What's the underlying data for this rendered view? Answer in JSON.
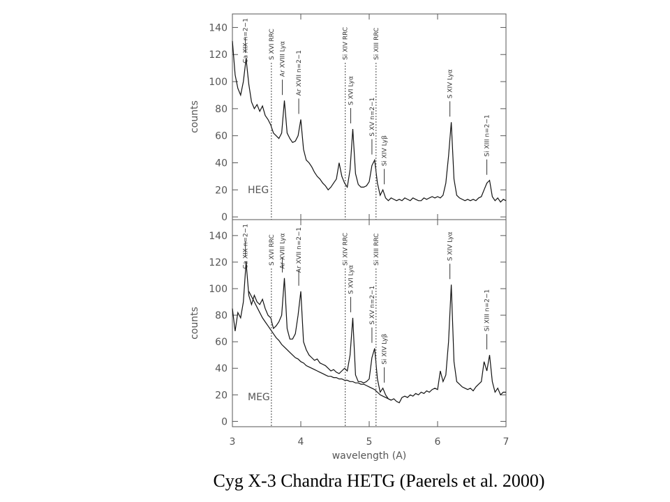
{
  "caption": "Cyg X-3 Chandra HETG (Paerels et al. 2000)",
  "chart_data": [
    {
      "type": "line",
      "panel_label": "HEG",
      "ylabel": "counts",
      "xlim": [
        3,
        7
      ],
      "ylim": [
        -2,
        150
      ],
      "xticks": [
        3,
        4,
        5,
        6,
        7
      ],
      "yticks": [
        0,
        20,
        40,
        60,
        80,
        100,
        120,
        140
      ],
      "x": [
        3.0,
        3.04,
        3.08,
        3.12,
        3.16,
        3.2,
        3.24,
        3.28,
        3.32,
        3.36,
        3.4,
        3.44,
        3.48,
        3.52,
        3.56,
        3.6,
        3.64,
        3.68,
        3.72,
        3.76,
        3.8,
        3.84,
        3.88,
        3.92,
        3.96,
        4.0,
        4.04,
        4.08,
        4.12,
        4.16,
        4.2,
        4.24,
        4.28,
        4.32,
        4.36,
        4.4,
        4.44,
        4.48,
        4.52,
        4.56,
        4.6,
        4.64,
        4.68,
        4.72,
        4.76,
        4.8,
        4.84,
        4.88,
        4.92,
        4.96,
        5.0,
        5.04,
        5.08,
        5.12,
        5.16,
        5.2,
        5.24,
        5.28,
        5.32,
        5.36,
        5.4,
        5.44,
        5.48,
        5.52,
        5.56,
        5.6,
        5.64,
        5.68,
        5.72,
        5.76,
        5.8,
        5.84,
        5.88,
        5.92,
        5.96,
        6.0,
        6.04,
        6.08,
        6.12,
        6.16,
        6.2,
        6.24,
        6.28,
        6.32,
        6.36,
        6.4,
        6.44,
        6.48,
        6.52,
        6.56,
        6.6,
        6.64,
        6.68,
        6.72,
        6.76,
        6.8,
        6.84,
        6.88,
        6.92,
        6.96,
        7.0
      ],
      "series": [
        {
          "color": "#111111",
          "values": [
            130,
            105,
            95,
            90,
            100,
            117,
            98,
            85,
            80,
            83,
            78,
            82,
            75,
            72,
            68,
            62,
            60,
            58,
            62,
            86,
            62,
            58,
            55,
            56,
            60,
            72,
            50,
            42,
            40,
            37,
            33,
            30,
            28,
            25,
            23,
            20,
            22,
            25,
            28,
            40,
            30,
            25,
            22,
            35,
            65,
            32,
            24,
            22,
            22,
            23,
            26,
            38,
            42,
            25,
            16,
            20,
            14,
            12,
            14,
            13,
            12,
            13,
            12,
            14,
            13,
            12,
            14,
            13,
            12,
            12,
            14,
            13,
            14,
            15,
            14,
            15,
            14,
            16,
            25,
            45,
            70,
            28,
            16,
            14,
            13,
            12,
            13,
            12,
            13,
            12,
            14,
            15,
            20,
            25,
            27,
            15,
            12,
            14,
            11,
            13,
            12
          ]
        }
      ],
      "annotations": [
        {
          "text": "Ca XIX n=2−1",
          "x": 3.19
        },
        {
          "text": "S XVI RRC",
          "x": 3.57,
          "style": "dotted"
        },
        {
          "text": "Ar XVIII Lyα",
          "x": 3.73
        },
        {
          "text": "Ar XVII n=2−1",
          "x": 3.97
        },
        {
          "text": "Si XIV RRC",
          "x": 4.65,
          "style": "dotted"
        },
        {
          "text": "S XVI Lyα",
          "x": 4.73
        },
        {
          "text": "S XV n=2−1",
          "x": 5.04
        },
        {
          "text": "Si XIII RRC",
          "x": 5.1,
          "style": "dotted"
        },
        {
          "text": "Si XIV Lyβ",
          "x": 5.22
        },
        {
          "text": "S XIV Lyα",
          "x": 6.18
        },
        {
          "text": "Si XIII n=2−1",
          "x": 6.72
        }
      ]
    },
    {
      "type": "line",
      "panel_label": "MEG",
      "ylabel": "counts",
      "xlabel": "wavelength (A)",
      "xlim": [
        3,
        7
      ],
      "ylim": [
        -4,
        152
      ],
      "xticks": [
        3,
        4,
        5,
        6,
        7
      ],
      "yticks": [
        0,
        20,
        40,
        60,
        80,
        100,
        120,
        140
      ],
      "x": [
        3.0,
        3.04,
        3.08,
        3.12,
        3.16,
        3.2,
        3.24,
        3.28,
        3.32,
        3.36,
        3.4,
        3.44,
        3.48,
        3.52,
        3.56,
        3.6,
        3.64,
        3.68,
        3.72,
        3.76,
        3.8,
        3.84,
        3.88,
        3.92,
        3.96,
        4.0,
        4.04,
        4.08,
        4.12,
        4.16,
        4.2,
        4.24,
        4.28,
        4.32,
        4.36,
        4.4,
        4.44,
        4.48,
        4.52,
        4.56,
        4.6,
        4.64,
        4.68,
        4.72,
        4.76,
        4.8,
        4.84,
        4.88,
        4.92,
        4.96,
        5.0,
        5.04,
        5.08,
        5.12,
        5.16,
        5.2,
        5.24,
        5.28,
        5.32,
        5.36,
        5.4,
        5.44,
        5.48,
        5.52,
        5.56,
        5.6,
        5.64,
        5.68,
        5.72,
        5.76,
        5.8,
        5.84,
        5.88,
        5.92,
        5.96,
        6.0,
        6.04,
        6.08,
        6.12,
        6.16,
        6.2,
        6.24,
        6.28,
        6.32,
        6.36,
        6.4,
        6.44,
        6.48,
        6.52,
        6.56,
        6.6,
        6.64,
        6.68,
        6.72,
        6.76,
        6.8,
        6.84,
        6.88,
        6.92,
        6.96,
        7.0
      ],
      "series": [
        {
          "color": "#111111",
          "values": [
            85,
            68,
            82,
            78,
            90,
            120,
            95,
            88,
            95,
            90,
            88,
            92,
            85,
            80,
            78,
            70,
            72,
            75,
            80,
            108,
            70,
            62,
            62,
            66,
            80,
            98,
            60,
            54,
            50,
            48,
            46,
            47,
            44,
            43,
            42,
            40,
            38,
            39,
            37,
            36,
            38,
            40,
            38,
            50,
            78,
            35,
            30,
            30,
            29,
            30,
            32,
            48,
            55,
            32,
            22,
            25,
            20,
            17,
            16,
            17,
            15,
            14,
            18,
            19,
            18,
            20,
            19,
            21,
            20,
            22,
            21,
            23,
            22,
            24,
            25,
            24,
            38,
            30,
            35,
            60,
            103,
            45,
            30,
            28,
            26,
            25,
            24,
            25,
            23,
            26,
            28,
            30,
            45,
            38,
            50,
            30,
            22,
            25,
            20,
            22,
            22
          ]
        },
        {
          "color": "#111111",
          "values": [
            null,
            null,
            null,
            null,
            null,
            null,
            98,
            94,
            90,
            86,
            82,
            78,
            75,
            72,
            69,
            66,
            63,
            61,
            58,
            56,
            54,
            52,
            50,
            48,
            47,
            45,
            44,
            42,
            41,
            40,
            39,
            38,
            37,
            36,
            35,
            34,
            34,
            33,
            33,
            32,
            32,
            31,
            31,
            30,
            30,
            29,
            29,
            28,
            28,
            27,
            26,
            25,
            24,
            22,
            20,
            19,
            18,
            17,
            16,
            null,
            null,
            null,
            null,
            null,
            null,
            null,
            null,
            null,
            null,
            null,
            null,
            null,
            null,
            null,
            null,
            null,
            null,
            null,
            null,
            null,
            null,
            null,
            null,
            null,
            null,
            null,
            null,
            null,
            null,
            null,
            null,
            null,
            null,
            null,
            null,
            null,
            null,
            null,
            null,
            null,
            null
          ]
        }
      ],
      "annotations": [
        {
          "text": "Ca XIX n=2−1",
          "x": 3.19
        },
        {
          "text": "S XVI RRC",
          "x": 3.57,
          "style": "dotted"
        },
        {
          "text": "Ar XVIII Lyα",
          "x": 3.73
        },
        {
          "text": "Ar XVII n=2−1",
          "x": 3.97
        },
        {
          "text": "Si XIV RRC",
          "x": 4.65,
          "style": "dotted"
        },
        {
          "text": "S XVI Lyα",
          "x": 4.73
        },
        {
          "text": "S XV n=2−1",
          "x": 5.04
        },
        {
          "text": "Si XIII RRC",
          "x": 5.1,
          "style": "dotted"
        },
        {
          "text": "Si XIV Lyβ",
          "x": 5.22
        },
        {
          "text": "S XIV Lyα",
          "x": 6.18
        },
        {
          "text": "Si XIII n=2−1",
          "x": 6.72
        }
      ]
    }
  ]
}
